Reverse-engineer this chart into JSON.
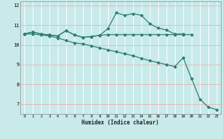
{
  "xlabel": "Humidex (Indice chaleur)",
  "x_values": [
    0,
    1,
    2,
    3,
    4,
    5,
    6,
    7,
    8,
    9,
    10,
    11,
    12,
    13,
    14,
    15,
    16,
    17,
    18,
    19,
    20,
    21,
    22,
    23
  ],
  "line1": [
    10.55,
    10.65,
    10.55,
    10.5,
    10.45,
    10.72,
    10.5,
    10.38,
    10.42,
    10.48,
    10.82,
    11.62,
    11.5,
    11.58,
    11.5,
    11.07,
    10.85,
    10.75,
    10.55,
    10.55,
    null,
    null,
    null,
    null
  ],
  "line2": [
    10.55,
    10.65,
    10.55,
    10.5,
    10.45,
    10.72,
    10.5,
    10.38,
    10.42,
    10.48,
    10.52,
    10.52,
    10.52,
    10.52,
    10.52,
    10.52,
    10.52,
    10.52,
    10.52,
    10.52,
    10.52,
    null,
    null,
    null
  ],
  "line3": [
    10.55,
    10.55,
    10.5,
    10.45,
    10.35,
    10.22,
    10.1,
    10.05,
    9.95,
    9.85,
    9.75,
    9.65,
    9.55,
    9.45,
    9.32,
    9.2,
    9.1,
    9.0,
    8.9,
    9.35,
    8.3,
    7.25,
    6.85,
    6.72
  ],
  "ylim": [
    6.5,
    12.2
  ],
  "yticks": [
    7,
    8,
    9,
    10,
    11,
    12
  ],
  "xticks": [
    0,
    1,
    2,
    3,
    4,
    5,
    6,
    7,
    8,
    9,
    10,
    11,
    12,
    13,
    14,
    15,
    16,
    17,
    18,
    19,
    20,
    21,
    22,
    23
  ],
  "line_color": "#2d7d6e",
  "bg_color": "#c8eaea",
  "fig_bg": "#c8eaea",
  "hgrid_color": "#e8b8b8",
  "vgrid_color": "#ffffff",
  "marker": "D",
  "marker_size": 1.8,
  "line_width": 0.9
}
